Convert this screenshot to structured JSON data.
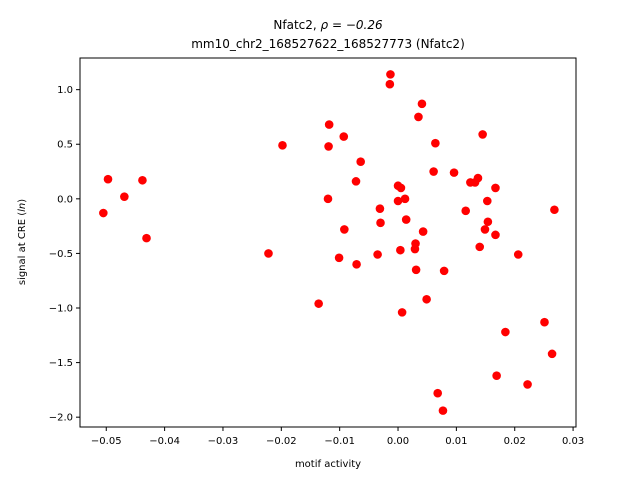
{
  "chart_data": {
    "type": "scatter",
    "title_line1_prefix": "Nfatc2, ",
    "title_line1_rho": "ρ = −0.26",
    "title_line2": "mm10_chr2_168527622_168527773 (Nfatc2)",
    "xlabel": "motif activity",
    "ylabel_prefix": "signal at CRE (",
    "ylabel_italic": "ln",
    "ylabel_suffix": ")",
    "xlim": [
      -0.0545,
      0.0305
    ],
    "ylim": [
      -2.09,
      1.29
    ],
    "xticks": [
      -0.05,
      -0.04,
      -0.03,
      -0.02,
      -0.01,
      0.0,
      0.01,
      0.02,
      0.03
    ],
    "xtick_labels": [
      "−0.05",
      "−0.04",
      "−0.03",
      "−0.02",
      "−0.01",
      "0.00",
      "0.01",
      "0.02",
      "0.03"
    ],
    "yticks": [
      -2.0,
      -1.5,
      -1.0,
      -0.5,
      0.0,
      0.5,
      1.0
    ],
    "ytick_labels": [
      "−2.0",
      "−1.5",
      "−1.0",
      "−0.5",
      "0.0",
      "0.5",
      "1.0"
    ],
    "marker_color": "#ff0000",
    "grid": false,
    "points": [
      {
        "x": -0.0505,
        "y": -0.13
      },
      {
        "x": -0.0497,
        "y": 0.18
      },
      {
        "x": -0.0469,
        "y": 0.02
      },
      {
        "x": -0.0438,
        "y": 0.17
      },
      {
        "x": -0.0431,
        "y": -0.36
      },
      {
        "x": -0.0222,
        "y": -0.5
      },
      {
        "x": -0.0198,
        "y": 0.49
      },
      {
        "x": -0.0136,
        "y": -0.96
      },
      {
        "x": -0.0118,
        "y": 0.68
      },
      {
        "x": -0.0119,
        "y": 0.48
      },
      {
        "x": -0.012,
        "y": 0.0
      },
      {
        "x": -0.0101,
        "y": -0.54
      },
      {
        "x": -0.0093,
        "y": 0.57
      },
      {
        "x": -0.0092,
        "y": -0.28
      },
      {
        "x": -0.0072,
        "y": 0.16
      },
      {
        "x": -0.0071,
        "y": -0.6
      },
      {
        "x": -0.0064,
        "y": 0.34
      },
      {
        "x": -0.0035,
        "y": -0.51
      },
      {
        "x": -0.0031,
        "y": -0.09
      },
      {
        "x": -0.003,
        "y": -0.22
      },
      {
        "x": -0.0013,
        "y": 1.14
      },
      {
        "x": -0.0014,
        "y": 1.05
      },
      {
        "x": 0.0,
        "y": -0.02
      },
      {
        "x": 0.0,
        "y": 0.12
      },
      {
        "x": 0.0004,
        "y": -0.47
      },
      {
        "x": 0.0005,
        "y": 0.1
      },
      {
        "x": 0.0007,
        "y": -1.04
      },
      {
        "x": 0.0012,
        "y": 0.0
      },
      {
        "x": 0.0014,
        "y": -0.19
      },
      {
        "x": 0.0029,
        "y": -0.46
      },
      {
        "x": 0.003,
        "y": -0.41
      },
      {
        "x": 0.0031,
        "y": -0.65
      },
      {
        "x": 0.0035,
        "y": 0.75
      },
      {
        "x": 0.0041,
        "y": 0.87
      },
      {
        "x": 0.0043,
        "y": -0.3
      },
      {
        "x": 0.0049,
        "y": -0.92
      },
      {
        "x": 0.0061,
        "y": 0.25
      },
      {
        "x": 0.0064,
        "y": 0.51
      },
      {
        "x": 0.0068,
        "y": -1.78
      },
      {
        "x": 0.0077,
        "y": -1.94
      },
      {
        "x": 0.0079,
        "y": -0.66
      },
      {
        "x": 0.0096,
        "y": 0.24
      },
      {
        "x": 0.0116,
        "y": -0.11
      },
      {
        "x": 0.0124,
        "y": 0.15
      },
      {
        "x": 0.0132,
        "y": 0.15
      },
      {
        "x": 0.0137,
        "y": 0.19
      },
      {
        "x": 0.014,
        "y": -0.44
      },
      {
        "x": 0.0145,
        "y": 0.59
      },
      {
        "x": 0.0149,
        "y": -0.28
      },
      {
        "x": 0.0153,
        "y": -0.02
      },
      {
        "x": 0.0154,
        "y": -0.21
      },
      {
        "x": 0.0167,
        "y": 0.1
      },
      {
        "x": 0.0167,
        "y": -0.33
      },
      {
        "x": 0.0169,
        "y": -1.62
      },
      {
        "x": 0.0184,
        "y": -1.22
      },
      {
        "x": 0.0206,
        "y": -0.51
      },
      {
        "x": 0.0222,
        "y": -1.7
      },
      {
        "x": 0.0251,
        "y": -1.13
      },
      {
        "x": 0.0264,
        "y": -1.42
      },
      {
        "x": 0.0268,
        "y": -0.1
      }
    ]
  }
}
